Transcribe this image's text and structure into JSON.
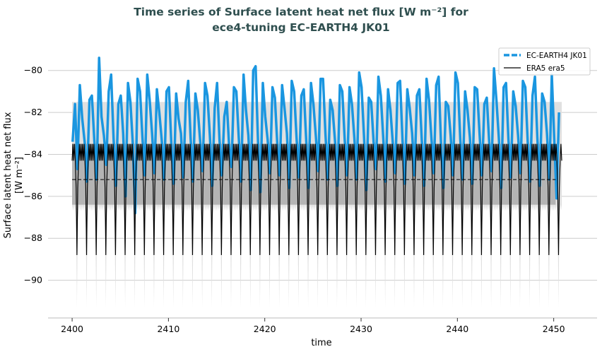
{
  "chart_data": {
    "type": "line",
    "title_line1": "Time series of Surface latent heat net flux [W m⁻²] for",
    "title_line2": "ece4-tuning EC-EARTH4 JK01",
    "xlabel": "time",
    "ylabel_line1": "Surface latent heat net flux",
    "ylabel_line2": "[W m⁻²]",
    "xlim": [
      2397.5,
      2454.5
    ],
    "ylim": [
      -91.8,
      -79.0
    ],
    "xticks": [
      2400,
      2410,
      2420,
      2430,
      2440,
      2450
    ],
    "yticks": [
      -80,
      -82,
      -84,
      -86,
      -88,
      -90
    ],
    "grid": "horizontal",
    "legend_position": "top-right",
    "legend": [
      "EC-EARTH4 JK01",
      "ERA5 era5"
    ],
    "colors": {
      "model": "#1a96e0",
      "era5": "#000000",
      "band_dark": "#b4b4b4",
      "band_light": "#e0e0e0",
      "title": "#2f4f4f",
      "grid": "#cccccc"
    },
    "series": [
      {
        "name": "EC-EARTH4 JK01",
        "x_start": 2400.05,
        "x_step": 0.25,
        "values": [
          -83.4,
          -81.6,
          -84.7,
          -80.7,
          -82.3,
          -83.4,
          -85.3,
          -81.4,
          -81.2,
          -83.3,
          -85.2,
          -79.4,
          -82.2,
          -83.1,
          -84.5,
          -81.0,
          -80.2,
          -83.2,
          -85.5,
          -81.6,
          -81.2,
          -83.0,
          -86.0,
          -80.6,
          -81.5,
          -83.5,
          -86.8,
          -80.4,
          -81.0,
          -83.2,
          -85.0,
          -80.2,
          -81.4,
          -83.0,
          -84.9,
          -80.9,
          -82.0,
          -83.3,
          -85.2,
          -81.0,
          -80.8,
          -83.5,
          -85.4,
          -81.1,
          -82.3,
          -83.0,
          -85.1,
          -81.5,
          -80.5,
          -83.2,
          -85.3,
          -81.1,
          -81.9,
          -83.4,
          -84.8,
          -80.6,
          -81.2,
          -83.1,
          -85.5,
          -81.8,
          -80.6,
          -83.3,
          -85.0,
          -82.2,
          -81.5,
          -83.6,
          -84.6,
          -80.8,
          -81.0,
          -83.2,
          -85.3,
          -80.2,
          -81.9,
          -83.1,
          -85.7,
          -80.0,
          -79.8,
          -83.4,
          -85.8,
          -80.6,
          -82.2,
          -83.3,
          -84.9,
          -80.8,
          -81.3,
          -83.5,
          -85.0,
          -80.7,
          -81.8,
          -83.0,
          -85.6,
          -80.5,
          -81.0,
          -83.2,
          -85.1,
          -81.2,
          -80.9,
          -83.3,
          -85.6,
          -80.6,
          -81.6,
          -83.1,
          -84.8,
          -80.4,
          -80.4,
          -83.0,
          -85.2,
          -81.4,
          -81.9,
          -83.4,
          -85.5,
          -80.7,
          -81.0,
          -83.3,
          -85.0,
          -80.8,
          -81.6,
          -83.2,
          -85.2,
          -80.1,
          -80.8,
          -83.1,
          -85.7,
          -81.3,
          -81.5,
          -83.4,
          -84.7,
          -80.3,
          -81.2,
          -83.2,
          -85.3,
          -80.9,
          -81.9,
          -83.5,
          -84.9,
          -80.6,
          -80.5,
          -83.3,
          -85.4,
          -80.9,
          -81.8,
          -83.0,
          -85.0,
          -81.2,
          -80.9,
          -83.3,
          -85.5,
          -80.4,
          -81.4,
          -83.2,
          -84.9,
          -80.7,
          -80.3,
          -83.5,
          -85.6,
          -81.5,
          -81.7,
          -83.1,
          -85.0,
          -80.1,
          -80.6,
          -83.3,
          -85.2,
          -81.0,
          -81.9,
          -83.2,
          -85.4,
          -80.8,
          -80.9,
          -83.0,
          -85.0,
          -81.6,
          -81.3,
          -83.4,
          -84.8,
          -79.9,
          -81.4,
          -83.2,
          -85.6,
          -80.8,
          -80.6,
          -83.3,
          -85.1,
          -81.0,
          -81.7,
          -83.1,
          -84.9,
          -80.5,
          -80.8,
          -83.4,
          -85.3,
          -81.2,
          -80.3,
          -83.2,
          -85.5,
          -81.1,
          -81.5,
          -83.0,
          -85.2,
          -80.2,
          -83.2,
          -86.1,
          -82.0
        ]
      },
      {
        "name": "ERA5 era5",
        "x_range": [
          2400,
          2450.9
        ],
        "monthly_climatology": [
          -84.3,
          -83.5,
          -84.3,
          -83.5,
          -84.3,
          -85.6,
          -88.8,
          -85.6,
          -84.3,
          -83.5,
          -84.3,
          -83.5
        ],
        "mean": -85.2,
        "std_band": [
          -86.4,
          -83.5
        ],
        "range_band_upper": -81.5,
        "range_band_lower_at_minimum": -91.3
      }
    ]
  }
}
